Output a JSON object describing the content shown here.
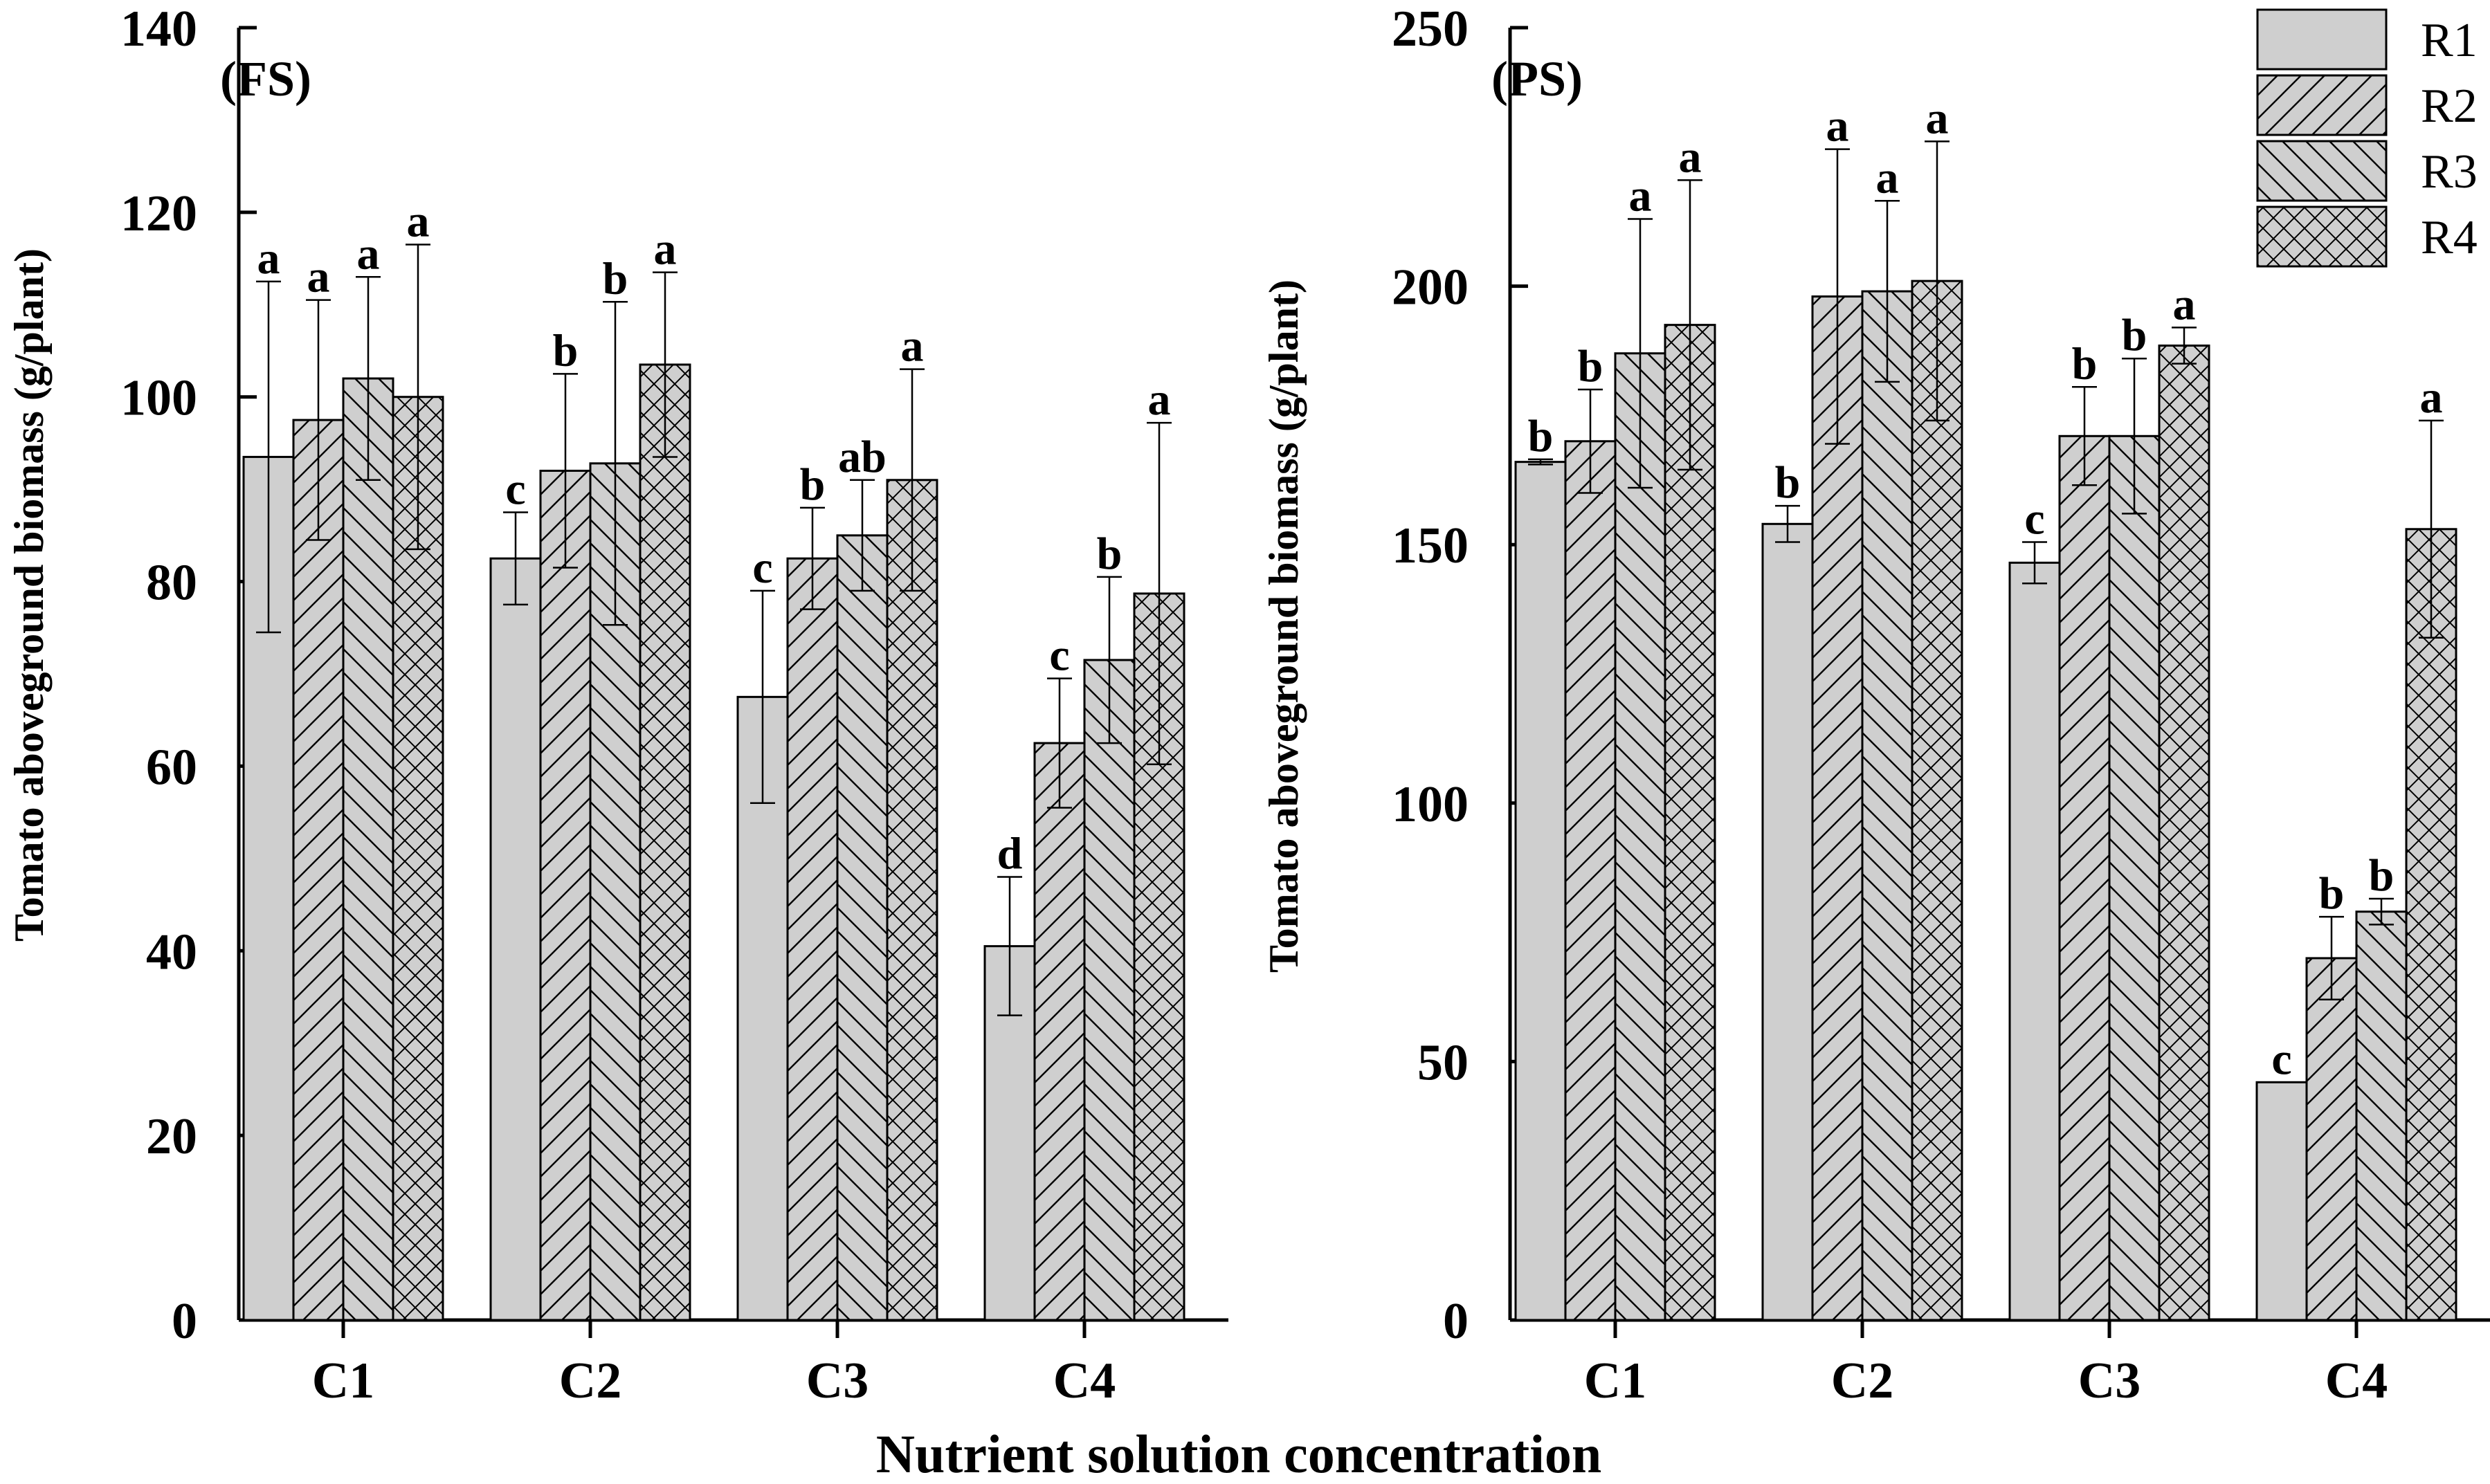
{
  "xlabel": "Nutrient solution concentration",
  "legend": {
    "entries": [
      "R1",
      "R2",
      "R3",
      "R4"
    ]
  },
  "colors": {
    "bar_fill": "#cfcfcf",
    "stroke": "#000000"
  },
  "chart_data": [
    {
      "type": "bar",
      "title": "(FS)",
      "ylabel": "Tomato aboveground biomass (g/plant)",
      "ylim": [
        0,
        140
      ],
      "yticks": [
        0,
        20,
        40,
        60,
        80,
        100,
        120,
        140
      ],
      "categories": [
        "C1",
        "C2",
        "C3",
        "C4"
      ],
      "series": [
        {
          "name": "R1",
          "values": [
            93.5,
            82.5,
            67.5,
            40.5
          ],
          "errors": [
            19,
            5,
            11.5,
            7.5
          ],
          "letters": [
            "a",
            "c",
            "c",
            "d"
          ]
        },
        {
          "name": "R2",
          "values": [
            97.5,
            92,
            82.5,
            62.5
          ],
          "errors": [
            13,
            10.5,
            5.5,
            7
          ],
          "letters": [
            "a",
            "b",
            "b",
            "c"
          ]
        },
        {
          "name": "R3",
          "values": [
            102,
            92.8,
            85,
            71.5
          ],
          "errors": [
            11,
            17.5,
            6,
            9
          ],
          "letters": [
            "a",
            "b",
            "ab",
            "b"
          ]
        },
        {
          "name": "R4",
          "values": [
            100,
            103.5,
            91,
            78.7
          ],
          "errors": [
            16.5,
            10,
            12,
            18.5
          ],
          "letters": [
            "a",
            "a",
            "a",
            "a"
          ]
        }
      ]
    },
    {
      "type": "bar",
      "title": "(PS)",
      "ylabel": "Tomato aboveground biomass (g/plant)",
      "ylim": [
        0,
        250
      ],
      "yticks": [
        0,
        50,
        100,
        150,
        200,
        250
      ],
      "categories": [
        "C1",
        "C2",
        "C3",
        "C4"
      ],
      "series": [
        {
          "name": "R1",
          "values": [
            166,
            154,
            146.5,
            46
          ],
          "errors": [
            0.5,
            3.5,
            4,
            0
          ],
          "letters": [
            "b",
            "b",
            "c",
            "c"
          ]
        },
        {
          "name": "R2",
          "values": [
            170,
            198,
            171,
            70
          ],
          "errors": [
            10,
            28.5,
            9.5,
            8
          ],
          "letters": [
            "b",
            "a",
            "b",
            "b"
          ]
        },
        {
          "name": "R3",
          "values": [
            187,
            199,
            171,
            79
          ],
          "errors": [
            26,
            17.5,
            15,
            2.5
          ],
          "letters": [
            "a",
            "a",
            "b",
            "b"
          ]
        },
        {
          "name": "R4",
          "values": [
            192.5,
            201,
            188.5,
            153
          ],
          "errors": [
            28,
            27,
            3.5,
            21
          ],
          "letters": [
            "a",
            "a",
            "a",
            "a"
          ]
        }
      ]
    }
  ]
}
